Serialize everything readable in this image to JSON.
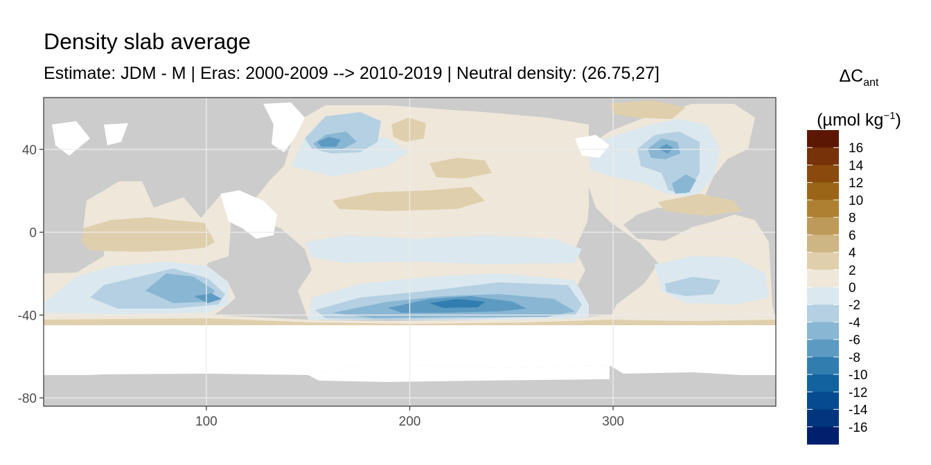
{
  "chart_data": {
    "type": "heatmap",
    "title": "Density slab average",
    "subtitle": "Estimate: JDM - M | Eras: 2000-2009 --> 2010-2019 | Neutral density: (26.75,27]",
    "legend": {
      "title_symbol": "ΔC",
      "title_subscript": "ant",
      "unit_prefix": "(µmol kg",
      "unit_superscript": "−1",
      "unit_suffix": ")",
      "placement": "right",
      "tick_labels": [
        "16",
        "14",
        "12",
        "10",
        "8",
        "6",
        "4",
        "2",
        "0",
        "-2",
        "-4",
        "-6",
        "-8",
        "-10",
        "-12",
        "-14",
        "-16"
      ],
      "colors": [
        "#5b1704",
        "#77320a",
        "#8a4a0d",
        "#9a6516",
        "#ae8132",
        "#bd9a5a",
        "#ceb584",
        "#e0cfac",
        "#eee7da",
        "#dce8ef",
        "#b4d0e2",
        "#89b6d3",
        "#5c9ac2",
        "#327db0",
        "#1262a0",
        "#064b8f",
        "#03357e",
        "#021f6e"
      ]
    },
    "xaxis": {
      "range": [
        20,
        380
      ],
      "ticks": [
        100,
        200,
        300
      ]
    },
    "yaxis": {
      "range": [
        -84,
        65
      ],
      "ticks": [
        40,
        0,
        -40,
        -80
      ]
    },
    "grid": true,
    "land_color": "#cccccc",
    "no_data_color": "#ffffff"
  }
}
